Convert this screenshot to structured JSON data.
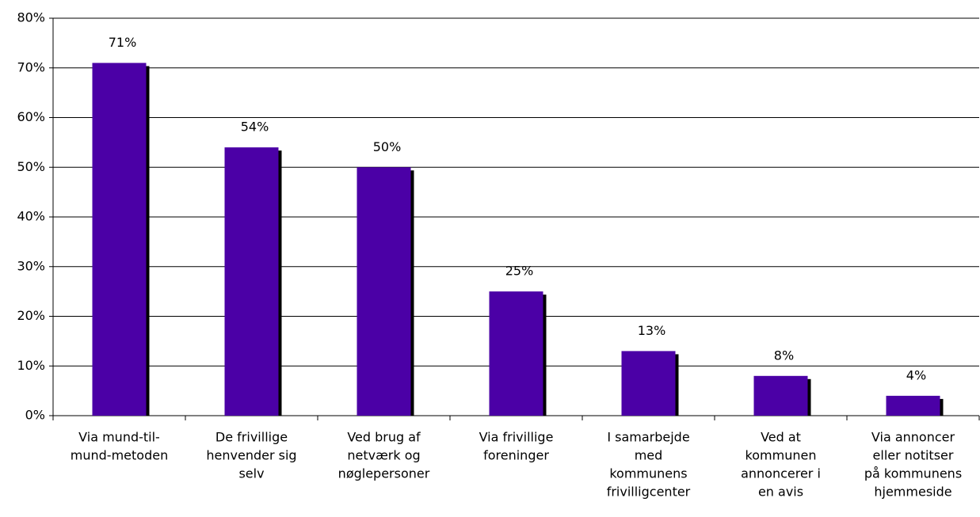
{
  "chart_data": {
    "type": "bar",
    "categories": [
      [
        "Via mund-til-",
        "mund-metoden"
      ],
      [
        "De frivillige",
        "henvender sig",
        "selv"
      ],
      [
        "Ved brug af",
        "netværk og",
        "nøglepersoner"
      ],
      [
        "Via frivillige",
        "foreninger"
      ],
      [
        "I samarbejde",
        "med",
        "kommunens",
        "frivilligcenter"
      ],
      [
        "Ved at",
        "kommunen",
        "annoncerer i",
        "en avis"
      ],
      [
        "Via annoncer",
        "eller notitser",
        "på kommunens",
        "hjemmeside"
      ]
    ],
    "values": [
      71,
      54,
      50,
      25,
      13,
      8,
      4
    ],
    "value_labels": [
      "71%",
      "54%",
      "50%",
      "25%",
      "13%",
      "8%",
      "4%"
    ],
    "color": "#4b00a6",
    "ylim": [
      0,
      80
    ],
    "yticks": [
      {
        "value": 0,
        "label": "0%"
      },
      {
        "value": 10,
        "label": "10%"
      },
      {
        "value": 20,
        "label": "20%"
      },
      {
        "value": 30,
        "label": "30%"
      },
      {
        "value": 40,
        "label": "40%"
      },
      {
        "value": 50,
        "label": "50%"
      },
      {
        "value": 60,
        "label": "60%"
      },
      {
        "value": 70,
        "label": "70%"
      },
      {
        "value": 80,
        "label": "80%"
      }
    ],
    "grid": true
  }
}
